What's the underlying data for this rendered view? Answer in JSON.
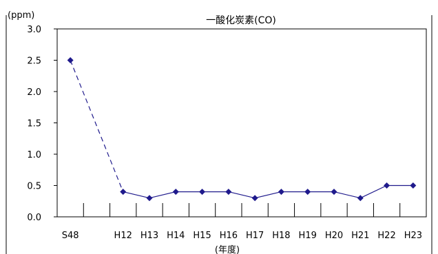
{
  "chart_data": {
    "type": "line",
    "title": "一酸化炭素(CO)",
    "ylabel": "(ppm)",
    "xlabel": "(年度)",
    "categories": [
      "S48",
      "",
      "H12",
      "H13",
      "H14",
      "H15",
      "H16",
      "H17",
      "H18",
      "H19",
      "H20",
      "H21",
      "H22",
      "H23"
    ],
    "x_tick_labels": [
      "S48",
      "H12",
      "H13",
      "H14",
      "H15",
      "H16",
      "H17",
      "H18",
      "H19",
      "H20",
      "H21",
      "H22",
      "H23"
    ],
    "y_tick_labels": [
      "0.0",
      "0.5",
      "1.0",
      "1.5",
      "2.0",
      "2.5",
      "3.0"
    ],
    "ylim": [
      0,
      3
    ],
    "y_step": 0.5,
    "grid": false,
    "series": [
      {
        "values": [
          2.5,
          null,
          0.4,
          0.3,
          0.4,
          0.4,
          0.4,
          0.3,
          0.4,
          0.4,
          0.4,
          0.3,
          0.5,
          0.5
        ],
        "color": "#1f1a8c",
        "marker": "diamond",
        "dashed_segment_between": [
          "S48",
          "H12"
        ]
      }
    ]
  }
}
